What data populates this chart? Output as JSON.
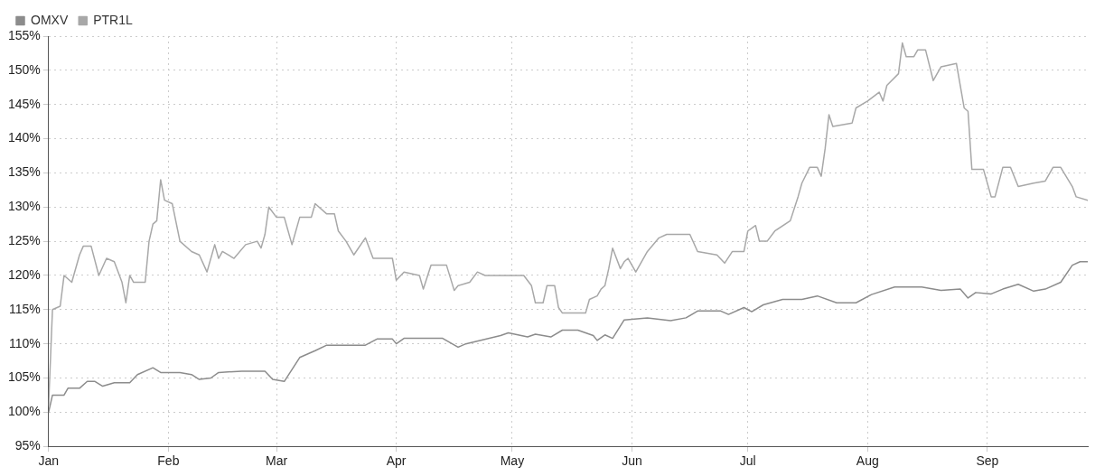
{
  "chart_data": {
    "type": "line",
    "legend": "top left",
    "grid": true,
    "marker": "none",
    "line_style": "solid",
    "xlim": [
      "--01-01",
      "--09-27"
    ],
    "xticks": [
      {
        "value": "--01-01",
        "label": "Jan"
      },
      {
        "value": "--02-01",
        "label": "Feb"
      },
      {
        "value": "--03-01",
        "label": "Mar"
      },
      {
        "value": "--04-01",
        "label": "Apr"
      },
      {
        "value": "--05-01",
        "label": "May"
      },
      {
        "value": "--06-01",
        "label": "Jun"
      },
      {
        "value": "--07-01",
        "label": "Jul"
      },
      {
        "value": "--08-01",
        "label": "Aug"
      },
      {
        "value": "--09-01",
        "label": "Sep"
      }
    ],
    "ylim": [
      95,
      155
    ],
    "yticks": [
      {
        "value": 95,
        "label": "95%"
      },
      {
        "value": 100,
        "label": "100%"
      },
      {
        "value": 105,
        "label": "105%"
      },
      {
        "value": 110,
        "label": "110%"
      },
      {
        "value": 115,
        "label": "115%"
      },
      {
        "value": 120,
        "label": "120%"
      },
      {
        "value": 125,
        "label": "125%"
      },
      {
        "value": 130,
        "label": "130%"
      },
      {
        "value": 135,
        "label": "135%"
      },
      {
        "value": 140,
        "label": "140%"
      },
      {
        "value": 145,
        "label": "145%"
      },
      {
        "value": 150,
        "label": "150%"
      },
      {
        "value": 155,
        "label": "155%"
      }
    ],
    "series": [
      {
        "name": "OMXV",
        "color": "#8c8c8c",
        "x": [
          "--01-01",
          "--01-02",
          "--01-05",
          "--01-06",
          "--01-09",
          "--01-11",
          "--01-13",
          "--01-15",
          "--01-18",
          "--01-22",
          "--01-24",
          "--01-28",
          "--01-30",
          "--02-04",
          "--02-07",
          "--02-09",
          "--02-12",
          "--02-14",
          "--02-20",
          "--02-26",
          "--02-28",
          "--03-03",
          "--03-07",
          "--03-11",
          "--03-14",
          "--03-24",
          "--03-27",
          "--03-31",
          "--04-01",
          "--04-03",
          "--04-13",
          "--04-17",
          "--04-19",
          "--04-28",
          "--04-30",
          "--05-05",
          "--05-07",
          "--05-11",
          "--05-14",
          "--05-18",
          "--05-22",
          "--05-23",
          "--05-25",
          "--05-27",
          "--05-30",
          "--06-05",
          "--06-11",
          "--06-15",
          "--06-18",
          "--06-24",
          "--06-26",
          "--06-30",
          "--07-02",
          "--07-05",
          "--07-10",
          "--07-15",
          "--07-19",
          "--07-24",
          "--07-29",
          "--08-02",
          "--08-08",
          "--08-15",
          "--08-20",
          "--08-25",
          "--08-27",
          "--08-29",
          "--09-02",
          "--09-05",
          "--09-09",
          "--09-13",
          "--09-16",
          "--09-20",
          "--09-23",
          "--09-25",
          "--09-27"
        ],
        "values": [
          100,
          102.5,
          102.5,
          103.5,
          103.5,
          104.5,
          104.5,
          103.8,
          104.3,
          104.3,
          105.5,
          106.5,
          105.8,
          105.8,
          105.5,
          104.8,
          105,
          105.8,
          106,
          106,
          104.8,
          104.5,
          108,
          109,
          109.8,
          109.8,
          110.7,
          110.7,
          110,
          110.8,
          110.8,
          109.5,
          110,
          111.2,
          111.6,
          111,
          111.4,
          111,
          112,
          112,
          111.2,
          110.5,
          111.3,
          110.8,
          113.5,
          113.8,
          113.4,
          113.8,
          114.8,
          114.8,
          114.3,
          115.3,
          114.7,
          115.7,
          116.5,
          116.5,
          117,
          116,
          116,
          117.2,
          118.3,
          118.3,
          117.8,
          118,
          116.7,
          117.5,
          117.3,
          118,
          118.7,
          117.7,
          118,
          119,
          121.5,
          122,
          122
        ]
      },
      {
        "name": "PTR1L",
        "color": "#a8a8a8",
        "x": [
          "--01-01",
          "--01-02",
          "--01-04",
          "--01-05",
          "--01-07",
          "--01-09",
          "--01-10",
          "--01-12",
          "--01-14",
          "--01-16",
          "--01-18",
          "--01-20",
          "--01-21",
          "--01-22",
          "--01-23",
          "--01-26",
          "--01-27",
          "--01-28",
          "--01-29",
          "--01-30",
          "--01-31",
          "--02-02",
          "--02-04",
          "--02-07",
          "--02-09",
          "--02-11",
          "--02-13",
          "--02-14",
          "--02-15",
          "--02-18",
          "--02-21",
          "--02-24",
          "--02-25",
          "--02-26",
          "--02-27",
          "--03-01",
          "--03-03",
          "--03-05",
          "--03-07",
          "--03-10",
          "--03-11",
          "--03-14",
          "--03-16",
          "--03-17",
          "--03-19",
          "--03-21",
          "--03-24",
          "--03-26",
          "--03-31",
          "--04-01",
          "--04-03",
          "--04-07",
          "--04-08",
          "--04-10",
          "--04-14",
          "--04-16",
          "--04-17",
          "--04-20",
          "--04-22",
          "--04-24",
          "--05-04",
          "--05-06",
          "--05-07",
          "--05-09",
          "--05-10",
          "--05-12",
          "--05-13",
          "--05-14",
          "--05-20",
          "--05-21",
          "--05-23",
          "--05-24",
          "--05-25",
          "--05-26",
          "--05-27",
          "--05-29",
          "--05-30",
          "--05-31",
          "--06-02",
          "--06-05",
          "--06-08",
          "--06-10",
          "--06-16",
          "--06-18",
          "--06-23",
          "--06-25",
          "--06-27",
          "--06-30",
          "--07-01",
          "--07-03",
          "--07-04",
          "--07-06",
          "--07-08",
          "--07-12",
          "--07-14",
          "--07-15",
          "--07-17",
          "--07-19",
          "--07-20",
          "--07-21",
          "--07-22",
          "--07-23",
          "--07-28",
          "--07-29",
          "--08-01",
          "--08-04",
          "--08-05",
          "--08-06",
          "--08-09",
          "--08-10",
          "--08-11",
          "--08-13",
          "--08-14",
          "--08-16",
          "--08-18",
          "--08-20",
          "--08-24",
          "--08-26",
          "--08-27",
          "--08-28",
          "--08-31",
          "--09-02",
          "--09-03",
          "--09-05",
          "--09-07",
          "--09-09",
          "--09-13",
          "--09-16",
          "--09-18",
          "--09-20",
          "--09-23",
          "--09-24",
          "--09-27"
        ],
        "values": [
          101,
          115,
          115.5,
          120,
          119,
          123,
          124.3,
          124.3,
          120,
          122.5,
          122,
          119,
          116,
          120,
          119,
          119,
          125,
          127.5,
          128,
          134,
          131,
          130.5,
          125,
          123.5,
          123,
          120.5,
          124.5,
          122.5,
          123.5,
          122.5,
          124.5,
          125,
          124,
          126,
          130,
          128.5,
          128.5,
          124.5,
          128.5,
          128.5,
          130.5,
          129,
          129,
          126.5,
          125,
          123,
          125.5,
          122.5,
          122.5,
          119.3,
          120.5,
          120,
          118,
          121.5,
          121.5,
          117.8,
          118.5,
          119,
          120.5,
          120,
          120,
          118.5,
          116,
          116,
          118.5,
          118.5,
          115.3,
          114.5,
          114.5,
          116.5,
          117,
          118,
          118.5,
          121,
          124,
          121,
          122,
          122.5,
          120.5,
          123.5,
          125.5,
          126,
          126,
          123.5,
          123,
          121.8,
          123.5,
          123.5,
          126.5,
          127.3,
          125,
          125,
          126.5,
          128,
          131.5,
          133.5,
          135.8,
          135.8,
          134.5,
          138.5,
          143.5,
          141.8,
          142.3,
          144.5,
          145.5,
          146.8,
          145.5,
          147.8,
          149.5,
          154,
          152,
          152,
          153,
          153,
          148.5,
          150.5,
          151,
          144.5,
          144,
          135.5,
          135.5,
          131.5,
          131.5,
          135.8,
          135.8,
          133,
          133.5,
          133.8,
          135.8,
          135.8,
          133,
          131.5,
          131
        ]
      }
    ]
  }
}
